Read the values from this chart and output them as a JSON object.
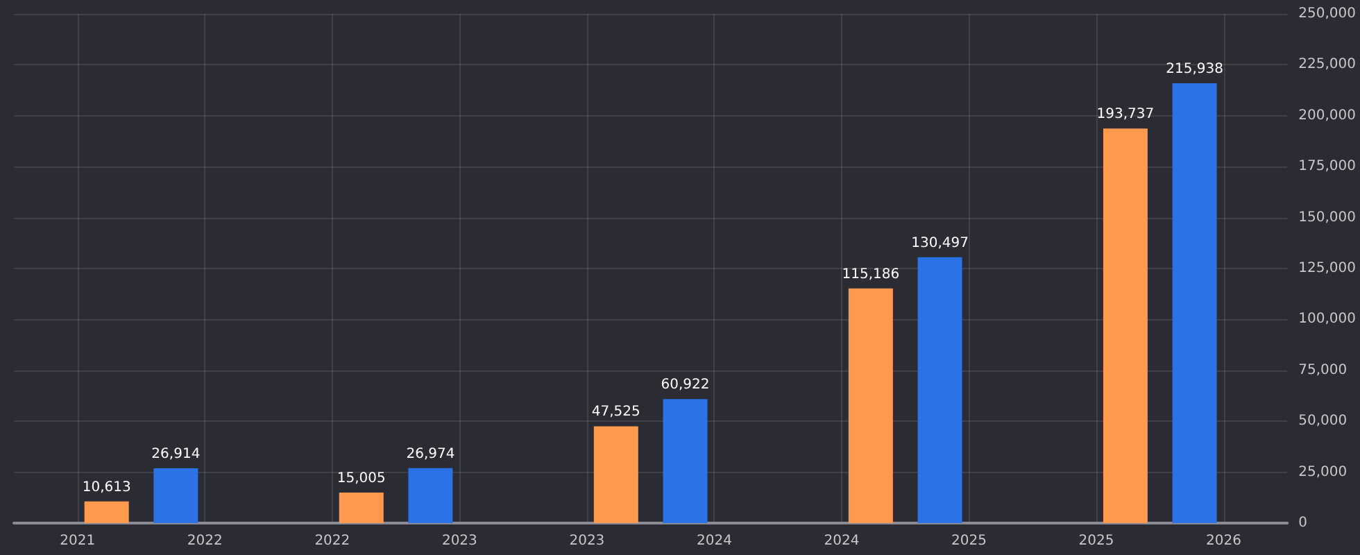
{
  "chart_data": {
    "type": "bar",
    "categories": [
      "2021",
      "2022",
      "2022",
      "2023",
      "2023",
      "2024",
      "2024",
      "2025",
      "2025",
      "2026"
    ],
    "series": [
      {
        "color": "#2a72e5",
        "values": [
          null,
          26914,
          null,
          26974,
          null,
          60922,
          null,
          130497,
          null,
          215938
        ],
        "value_labels": [
          null,
          "26,914",
          null,
          "26,974",
          null,
          "60,922",
          null,
          "130,497",
          null,
          "215,938"
        ]
      },
      {
        "color": "#ff994d",
        "values": [
          10613,
          null,
          15005,
          null,
          47525,
          null,
          115186,
          null,
          193737,
          null
        ],
        "value_labels": [
          "10,613",
          null,
          "15,005",
          null,
          "47,525",
          null,
          "115,186",
          null,
          "193,737",
          null
        ]
      }
    ],
    "ylim": [
      0,
      250000
    ],
    "yticks": [
      {
        "value": 0,
        "label": "0"
      },
      {
        "value": 25000,
        "label": "25,000"
      },
      {
        "value": 50000,
        "label": "50,000"
      },
      {
        "value": 75000,
        "label": "75,000"
      },
      {
        "value": 100000,
        "label": "100,000"
      },
      {
        "value": 125000,
        "label": "125,000"
      },
      {
        "value": 150000,
        "label": "150,000"
      },
      {
        "value": 175000,
        "label": "175,000"
      },
      {
        "value": 200000,
        "label": "200,000"
      },
      {
        "value": 225000,
        "label": "225,000"
      },
      {
        "value": 250000,
        "label": "250,000"
      }
    ],
    "grid": true
  }
}
